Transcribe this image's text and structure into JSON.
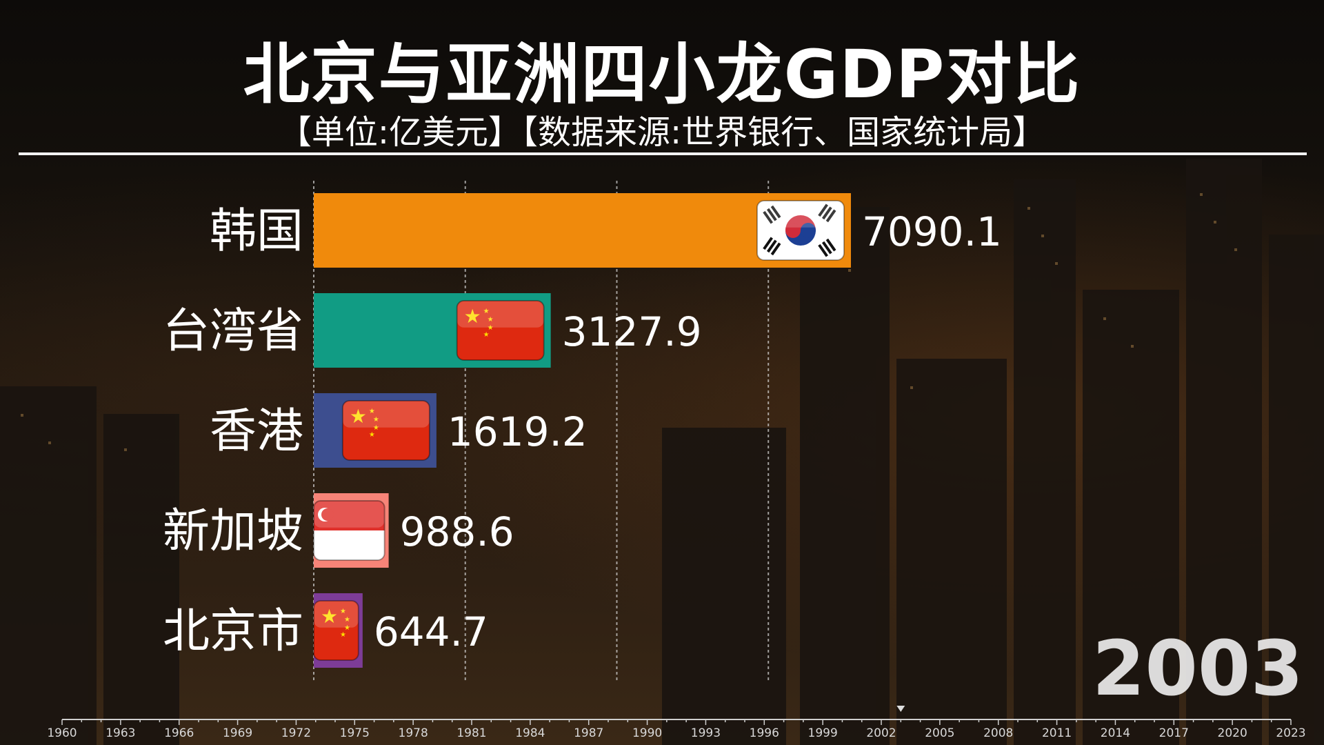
{
  "title": "北京与亚洲四小龙GDP对比",
  "subtitle": "【单位:亿美元】【数据来源:世界银行、国家统计局】",
  "year": "2003",
  "colors": {
    "bar_korea": "#F08A0C",
    "bar_taiwan": "#119C84",
    "bar_hongkong": "#3D4E8F",
    "bar_singapore": "#F78478",
    "bar_beijing": "#7D3C97"
  },
  "chart_data": {
    "type": "bar",
    "orientation": "horizontal",
    "categories": [
      "韩国",
      "台湾省",
      "香港",
      "新加坡",
      "北京市"
    ],
    "values": [
      7090.1,
      3127.9,
      1619.2,
      988.6,
      644.7
    ],
    "value_labels": [
      "7090.1",
      "3127.9",
      "1619.2",
      "988.6",
      "644.7"
    ],
    "flags": [
      "south-korea-flag-icon",
      "china-flag-icon",
      "china-flag-icon",
      "singapore-flag-icon",
      "china-flag-icon"
    ],
    "xlim": [
      0,
      7600
    ],
    "gridlines": [
      0,
      2000,
      4000,
      6000
    ],
    "grid": true
  },
  "timeline": {
    "start": 1960,
    "end": 2023,
    "labels": [
      "1960",
      "1963",
      "1966",
      "1969",
      "1972",
      "1975",
      "1978",
      "1981",
      "1984",
      "1987",
      "1990",
      "1993",
      "1996",
      "1999",
      "2002",
      "2005",
      "2008",
      "2011",
      "2014",
      "2017",
      "2020",
      "2023"
    ],
    "current": 2003
  }
}
